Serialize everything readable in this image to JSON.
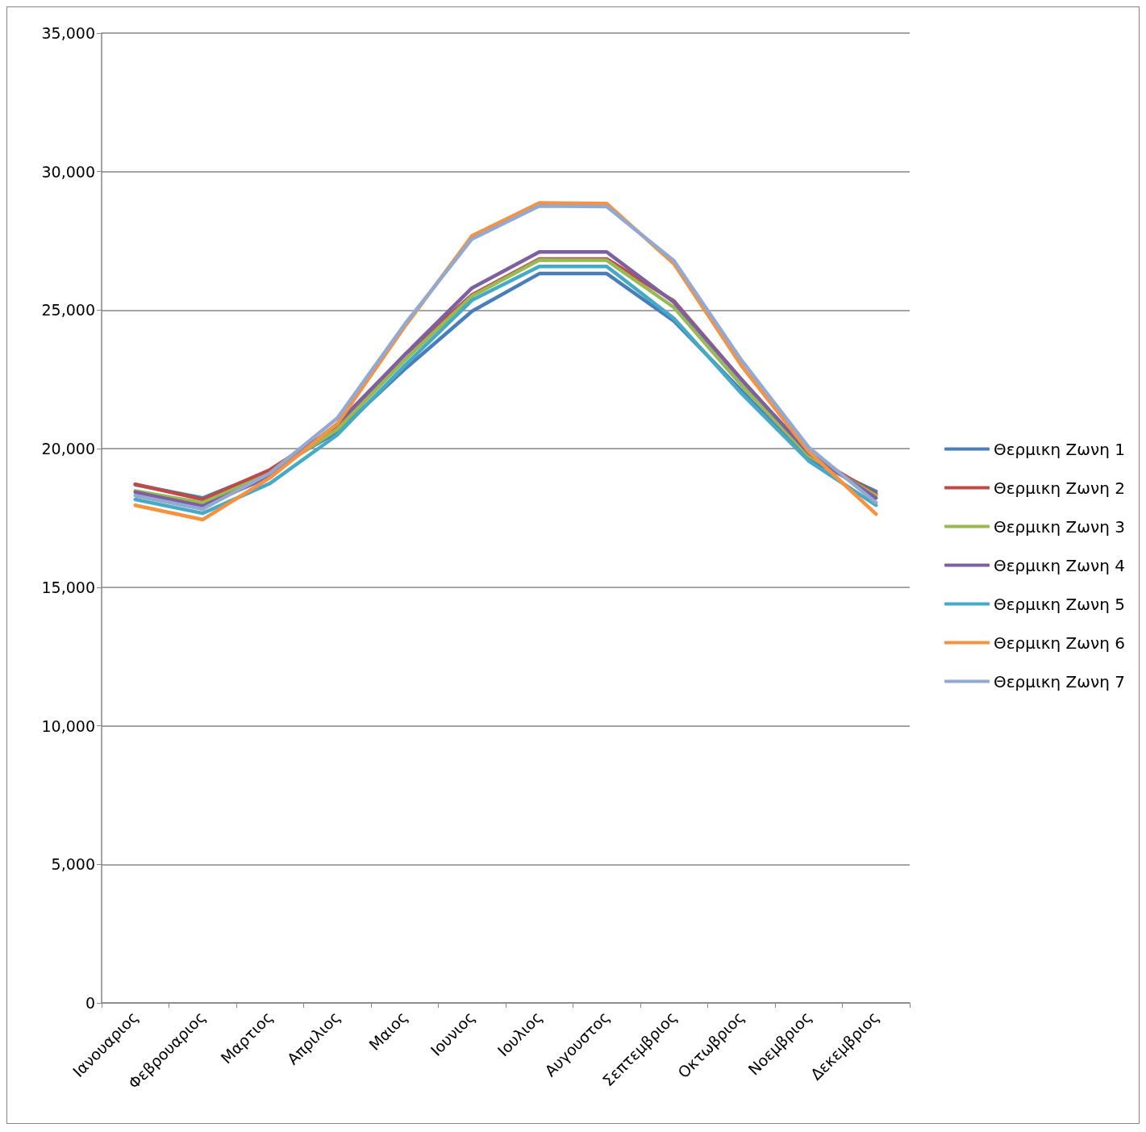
{
  "chart_data": {
    "type": "line",
    "categories": [
      "Ιανουαριος",
      "Φεβρουαριος",
      "Μαρτιος",
      "Απριλιος",
      "Μαιος",
      "Ιουνιος",
      "Ιουλιος",
      "Αυγουστος",
      "Σεπτεμβριος",
      "Οκτωβριος",
      "Νοεμβριος",
      "Δεκεμβριος"
    ],
    "series": [
      {
        "name": "Θερμικη Ζωνη 1",
        "color": "#4a7ebb",
        "values": [
          18700,
          18220,
          19200,
          20600,
          22870,
          24960,
          26320,
          26320,
          24610,
          22100,
          19600,
          18460
        ]
      },
      {
        "name": "Θερμικη Ζωνη 2",
        "color": "#be4b48",
        "values": [
          18720,
          18170,
          19240,
          20800,
          23390,
          25550,
          26850,
          26850,
          25330,
          22500,
          19800,
          18370
        ]
      },
      {
        "name": "Θερμικη Ζωνη 3",
        "color": "#98b954",
        "values": [
          18480,
          18050,
          19100,
          20700,
          23200,
          25510,
          26810,
          26800,
          25100,
          22300,
          19750,
          18310
        ]
      },
      {
        "name": "Θερμικη Ζωνη 4",
        "color": "#7d60a0",
        "values": [
          18430,
          17930,
          19000,
          20900,
          23390,
          25800,
          27100,
          27100,
          25280,
          22500,
          19850,
          18220
        ]
      },
      {
        "name": "Θερμικη Ζωνη 5",
        "color": "#46aac5",
        "values": [
          18170,
          17670,
          18750,
          20500,
          23000,
          25360,
          26580,
          26580,
          24700,
          22000,
          19560,
          17960
        ]
      },
      {
        "name": "Θερμικη Ζωνη 6",
        "color": "#f69240",
        "values": [
          17960,
          17440,
          18950,
          20900,
          24400,
          27680,
          28870,
          28850,
          26670,
          23000,
          19900,
          17640
        ]
      },
      {
        "name": "Θερμικη Ζωνη 7",
        "color": "#93a9cf",
        "values": [
          18310,
          17820,
          19120,
          21100,
          24490,
          27570,
          28760,
          28740,
          26780,
          23200,
          20050,
          18050
        ]
      }
    ],
    "ylim": [
      0,
      35000
    ],
    "yticks": [
      0,
      {
        "value": 5000,
        "label": "5,000"
      },
      {
        "value": 10000,
        "label": "10,000"
      },
      {
        "value": 15000,
        "label": "15,000"
      },
      {
        "value": 20000,
        "label": "20,000"
      },
      {
        "value": 25000,
        "label": "25,000"
      },
      {
        "value": 30000,
        "label": "30,000"
      },
      {
        "value": 35000,
        "label": "35,000"
      }
    ],
    "grid": "y",
    "legend": "right",
    "marker": "none",
    "line_style": "solid"
  }
}
